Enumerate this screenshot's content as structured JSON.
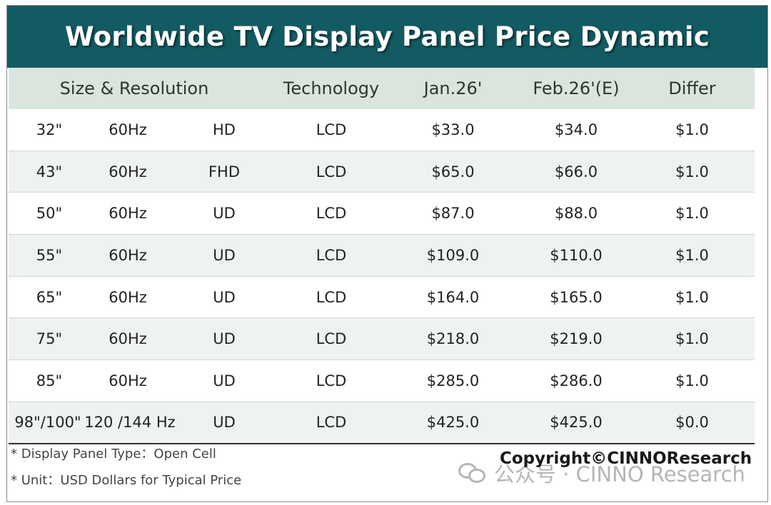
{
  "title": "Worldwide TV Display Panel Price Dynamic",
  "columns": {
    "size_resolution": "Size & Resolution",
    "technology": "Technology",
    "jan": "Jan.26'",
    "feb": "Feb.26'(E)",
    "differ": "Differ"
  },
  "rows": [
    {
      "size": "32\"",
      "freq": "60Hz",
      "res": "HD",
      "tech": "LCD",
      "jan": "$33.0",
      "feb": "$34.0",
      "differ": "$1.0"
    },
    {
      "size": "43\"",
      "freq": "60Hz",
      "res": "FHD",
      "tech": "LCD",
      "jan": "$65.0",
      "feb": "$66.0",
      "differ": "$1.0"
    },
    {
      "size": "50\"",
      "freq": "60Hz",
      "res": "UD",
      "tech": "LCD",
      "jan": "$87.0",
      "feb": "$88.0",
      "differ": "$1.0"
    },
    {
      "size": "55\"",
      "freq": "60Hz",
      "res": "UD",
      "tech": "LCD",
      "jan": "$109.0",
      "feb": "$110.0",
      "differ": "$1.0"
    },
    {
      "size": "65\"",
      "freq": "60Hz",
      "res": "UD",
      "tech": "LCD",
      "jan": "$164.0",
      "feb": "$165.0",
      "differ": "$1.0"
    },
    {
      "size": "75\"",
      "freq": "60Hz",
      "res": "UD",
      "tech": "LCD",
      "jan": "$218.0",
      "feb": "$219.0",
      "differ": "$1.0"
    },
    {
      "size": "85\"",
      "freq": "60Hz",
      "res": "UD",
      "tech": "LCD",
      "jan": "$285.0",
      "feb": "$286.0",
      "differ": "$1.0"
    },
    {
      "size": "98\"/100\"",
      "freq": "120 /144 Hz",
      "res": "UD",
      "tech": "LCD",
      "jan": "$425.0",
      "feb": "$425.0",
      "differ": "$0.0"
    }
  ],
  "notes": {
    "panel_type": "* Display Panel Type：Open Cell",
    "unit": "* Unit：USD Dollars for Typical Price"
  },
  "copyright": "Copyright©CINNOResearch",
  "watermark": {
    "text": "公众号 · CINNO Research",
    "icon": "wechat-icon"
  },
  "colors": {
    "title_bar": "#135b63",
    "header_row": "#d9e5dd",
    "alt_row": "#eef3ef"
  }
}
